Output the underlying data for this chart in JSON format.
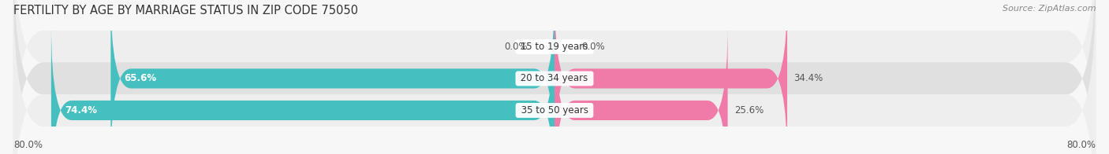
{
  "title": "FERTILITY BY AGE BY MARRIAGE STATUS IN ZIP CODE 75050",
  "source": "Source: ZipAtlas.com",
  "categories": [
    "15 to 19 years",
    "20 to 34 years",
    "35 to 50 years"
  ],
  "married_values": [
    0.0,
    65.6,
    74.4
  ],
  "unmarried_values": [
    0.0,
    34.4,
    25.6
  ],
  "married_color": "#45bfbf",
  "unmarried_color": "#f07aa8",
  "row_bg_color_light": "#eeeeee",
  "row_bg_color_dark": "#e0e0e0",
  "fig_bg_color": "#f7f7f7",
  "axis_left_label": "80.0%",
  "axis_right_label": "80.0%",
  "xlim_left": -80.0,
  "xlim_right": 80.0,
  "bar_height": 0.62,
  "title_fontsize": 10.5,
  "label_fontsize": 8.5,
  "tick_fontsize": 8.5,
  "source_fontsize": 8,
  "value_fontsize": 8.5
}
